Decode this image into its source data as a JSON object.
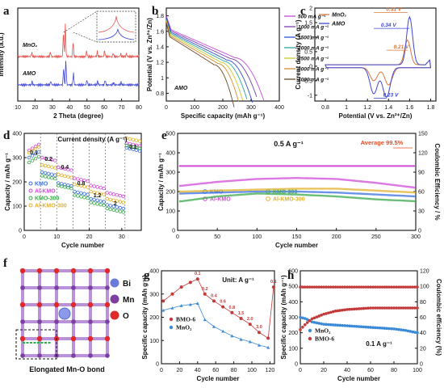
{
  "chart_data": [
    {
      "panel": "a",
      "type": "line",
      "xlabel": "2 Theta (degree)",
      "ylabel": "Intensity (a.u.)",
      "xlim": [
        10,
        80
      ],
      "xticks": [
        10,
        20,
        30,
        40,
        50,
        60,
        70,
        80
      ],
      "series": [
        {
          "name": "MnO₂",
          "color": "#e8504a",
          "peaks": [
            [
              18.1,
              0.8
            ],
            [
              28.9,
              0.9
            ],
            [
              36.4,
              5.0
            ],
            [
              37.5,
              6.5
            ],
            [
              42.0,
              3.0
            ],
            [
              49.8,
              1.2
            ],
            [
              56.0,
              1.0
            ],
            [
              60.2,
              1.2
            ],
            [
              65.2,
              0.7
            ],
            [
              69.5,
              0.6
            ],
            [
              72.8,
              0.6
            ]
          ]
        },
        {
          "name": "AMO",
          "color": "#3f47d8",
          "peaks": [
            [
              18.3,
              0.7
            ],
            [
              29.1,
              0.8
            ],
            [
              36.5,
              3.5
            ],
            [
              37.8,
              5.0
            ],
            [
              42.2,
              2.5
            ],
            [
              50.0,
              1.0
            ],
            [
              56.2,
              0.8
            ],
            [
              60.5,
              1.0
            ],
            [
              65.4,
              0.5
            ],
            [
              69.8,
              0.5
            ]
          ]
        }
      ]
    },
    {
      "panel": "b",
      "type": "line",
      "xlabel": "Specific capacity (mAh g⁻¹)",
      "ylabel": "Potential (V vs. Zn²⁺/Zn)",
      "xlim": [
        0,
        400
      ],
      "ylim": [
        0.7,
        1.9
      ],
      "xticks": [
        0,
        100,
        200,
        300,
        400
      ],
      "yticks": [
        0.8,
        1.0,
        1.2,
        1.4,
        1.6,
        1.8
      ],
      "annotation": "AMO",
      "series": [
        {
          "name": "500 mA g⁻¹",
          "color": "#c64ad8",
          "capacity": 345
        },
        {
          "name": "1000 mA g⁻¹",
          "color": "#7a3fb0",
          "capacity": 325
        },
        {
          "name": "1500 mA g⁻¹",
          "color": "#3050d0",
          "capacity": 305
        },
        {
          "name": "2000 mA g⁻¹",
          "color": "#2aa7a0",
          "capacity": 290
        },
        {
          "name": "2500 mA g⁻¹",
          "color": "#c9c92a",
          "capacity": 275
        },
        {
          "name": "3000 mA g⁻¹",
          "color": "#d88a2a",
          "capacity": 260
        },
        {
          "name": "4000 mA g⁻¹",
          "color": "#6a4a2a",
          "capacity": 240
        }
      ]
    },
    {
      "panel": "c",
      "type": "line",
      "xlabel": "Potential (V vs. Zn²⁺/Zn)",
      "ylabel": "Current density (A g⁻¹)",
      "xlim": [
        0.7,
        1.85
      ],
      "ylim": [
        -1.2,
        2.0
      ],
      "xticks": [
        0.8,
        1.0,
        1.2,
        1.4,
        1.6,
        1.8
      ],
      "yticks": [
        -1.0,
        -0.5,
        0.0,
        0.5,
        1.0,
        1.5,
        2.0
      ],
      "annotations": [
        "0.31 V",
        "0.34 V",
        "0.21 V",
        "0.23 V"
      ],
      "series": [
        {
          "name": "MnO₂",
          "color": "#d9783a",
          "ox_peak": [
            1.58,
            0.85
          ],
          "red_peaks": [
            [
              1.26,
              -0.45
            ],
            [
              1.4,
              -0.6
            ]
          ]
        },
        {
          "name": "AMO",
          "color": "#3f47d8",
          "ox_peak": [
            1.6,
            1.65
          ],
          "red_peaks": [
            [
              1.26,
              -0.9
            ],
            [
              1.38,
              -1.02
            ]
          ]
        }
      ]
    },
    {
      "panel": "d",
      "type": "scatter",
      "title": "Current density (A g⁻¹)",
      "xlabel": "Cycle number",
      "ylabel": "Capacity / mAh g⁻¹",
      "xlim": [
        0,
        36
      ],
      "ylim": [
        0,
        400
      ],
      "xticks": [
        0,
        10,
        20,
        30
      ],
      "yticks": [
        0,
        100,
        200,
        300,
        400
      ],
      "rate_labels": [
        "0.1",
        "0.2",
        "0.4",
        "0.8",
        "1.2",
        "2",
        "0.1"
      ],
      "series": [
        {
          "name": "KMO",
          "color": "#3a6fe0",
          "values": [
            300,
            240,
            195,
            160,
            130,
            105,
            340
          ]
        },
        {
          "name": "Al-KMO",
          "color": "#d24ad8",
          "values": [
            330,
            300,
            260,
            215,
            185,
            155,
            360
          ]
        },
        {
          "name": "KMO-300",
          "color": "#3aa84a",
          "values": [
            280,
            225,
            185,
            145,
            115,
            90,
            350
          ]
        },
        {
          "name": "Al-KMO-300",
          "color": "#e0b02a",
          "values": [
            320,
            270,
            230,
            190,
            160,
            130,
            380
          ]
        }
      ]
    },
    {
      "panel": "e",
      "type": "scatter",
      "title": "0.5 A g⁻¹",
      "xlabel": "Cycle number",
      "ylabel": "Capacity / mAh g⁻¹",
      "y2label": "Coulombic Efficiency / %",
      "xlim": [
        0,
        300
      ],
      "ylim": [
        0,
        500
      ],
      "y2lim": [
        0,
        150
      ],
      "xticks": [
        0,
        50,
        100,
        150,
        200,
        250,
        300
      ],
      "yticks": [
        0,
        100,
        200,
        300,
        400,
        500
      ],
      "y2ticks": [
        0,
        30,
        60,
        90,
        120,
        150
      ],
      "annotation": "Average 99.5%",
      "series": [
        {
          "name": "KMO",
          "color": "#3a6fe0",
          "x": [
            5,
            50,
            100,
            150,
            200,
            250,
            300
          ],
          "values": [
            190,
            195,
            200,
            200,
            195,
            185,
            175
          ]
        },
        {
          "name": "Al-KMO",
          "color": "#d24ad8",
          "x": [
            5,
            50,
            100,
            150,
            200,
            250,
            300
          ],
          "values": [
            230,
            250,
            265,
            270,
            265,
            245,
            220
          ]
        },
        {
          "name": "KMO-300",
          "color": "#3aa84a",
          "x": [
            5,
            50,
            100,
            150,
            200,
            250,
            300
          ],
          "values": [
            150,
            175,
            190,
            185,
            175,
            160,
            150
          ]
        },
        {
          "name": "Al-KMO-300",
          "color": "#e0b02a",
          "x": [
            5,
            50,
            100,
            150,
            200,
            250,
            300
          ],
          "values": [
            200,
            205,
            210,
            215,
            215,
            205,
            195
          ]
        }
      ],
      "efficiency": 99.5
    },
    {
      "panel": "g",
      "type": "scatter",
      "title": "Unit: A g⁻¹",
      "xlabel": "Cycle number",
      "ylabel": "Specific capacity (mAh g⁻¹)",
      "xlim": [
        0,
        125
      ],
      "ylim": [
        0,
        400
      ],
      "xticks": [
        0,
        20,
        40,
        60,
        80,
        100,
        120
      ],
      "yticks": [
        0,
        100,
        200,
        300,
        400
      ],
      "rate_labels": [
        "0.1",
        "0.2",
        "0.4",
        "0.6",
        "0.8",
        "1.5",
        "2.0",
        "3.0",
        "0.1"
      ],
      "series": [
        {
          "name": "BMO-6",
          "color": "#c23a3a",
          "x": [
            2,
            12,
            22,
            32,
            40,
            48,
            58,
            68,
            78,
            88,
            98,
            108,
            118,
            124
          ],
          "values": [
            270,
            300,
            330,
            350,
            365,
            300,
            270,
            245,
            220,
            195,
            170,
            135,
            110,
            330
          ]
        },
        {
          "name": "MnO₂",
          "color": "#3a8ad8",
          "x": [
            2,
            12,
            22,
            32,
            40,
            48,
            58,
            68,
            78,
            88,
            98,
            108,
            118
          ],
          "values": [
            230,
            240,
            250,
            255,
            260,
            190,
            160,
            140,
            120,
            105,
            95,
            80,
            70
          ]
        }
      ]
    },
    {
      "panel": "h",
      "type": "scatter",
      "title": "0.1 A g⁻¹",
      "xlabel": "Cycle number",
      "ylabel": "Specific capacity (mAh g⁻¹)",
      "y2label": "Coulombic efficiency (%)",
      "xlim": [
        0,
        100
      ],
      "ylim": [
        0,
        600
      ],
      "y2lim": [
        0,
        120
      ],
      "xticks": [
        0,
        20,
        40,
        60,
        80,
        100
      ],
      "yticks": [
        0,
        100,
        200,
        300,
        400,
        500,
        600
      ],
      "y2ticks": [
        0,
        20,
        40,
        60,
        80,
        100,
        120
      ],
      "series": [
        {
          "name": "MnO₂",
          "color": "#3a8ad8",
          "x": [
            0,
            5,
            10,
            20,
            30,
            40,
            50,
            60,
            70,
            80,
            90,
            100
          ],
          "values": [
            300,
            290,
            270,
            255,
            250,
            245,
            240,
            235,
            230,
            225,
            215,
            200
          ]
        },
        {
          "name": "BMO-6",
          "color": "#c23a3a",
          "x": [
            0,
            5,
            10,
            20,
            30,
            40,
            50,
            60,
            70,
            80,
            90,
            100
          ],
          "values": [
            220,
            260,
            290,
            320,
            340,
            350,
            355,
            360,
            360,
            360,
            360,
            360
          ]
        }
      ],
      "efficiency": 99
    }
  ],
  "panel_f": {
    "legend": [
      {
        "label": "Bi",
        "color": "#6a7ad8"
      },
      {
        "label": "Mn",
        "color": "#7a3fa0"
      },
      {
        "label": "O",
        "color": "#e02a2a"
      }
    ],
    "caption": "Elongated Mn-O bond"
  },
  "labels": {
    "a": "a",
    "b": "b",
    "c": "c",
    "d": "d",
    "e": "e",
    "f": "f",
    "g": "g",
    "h": "h"
  }
}
